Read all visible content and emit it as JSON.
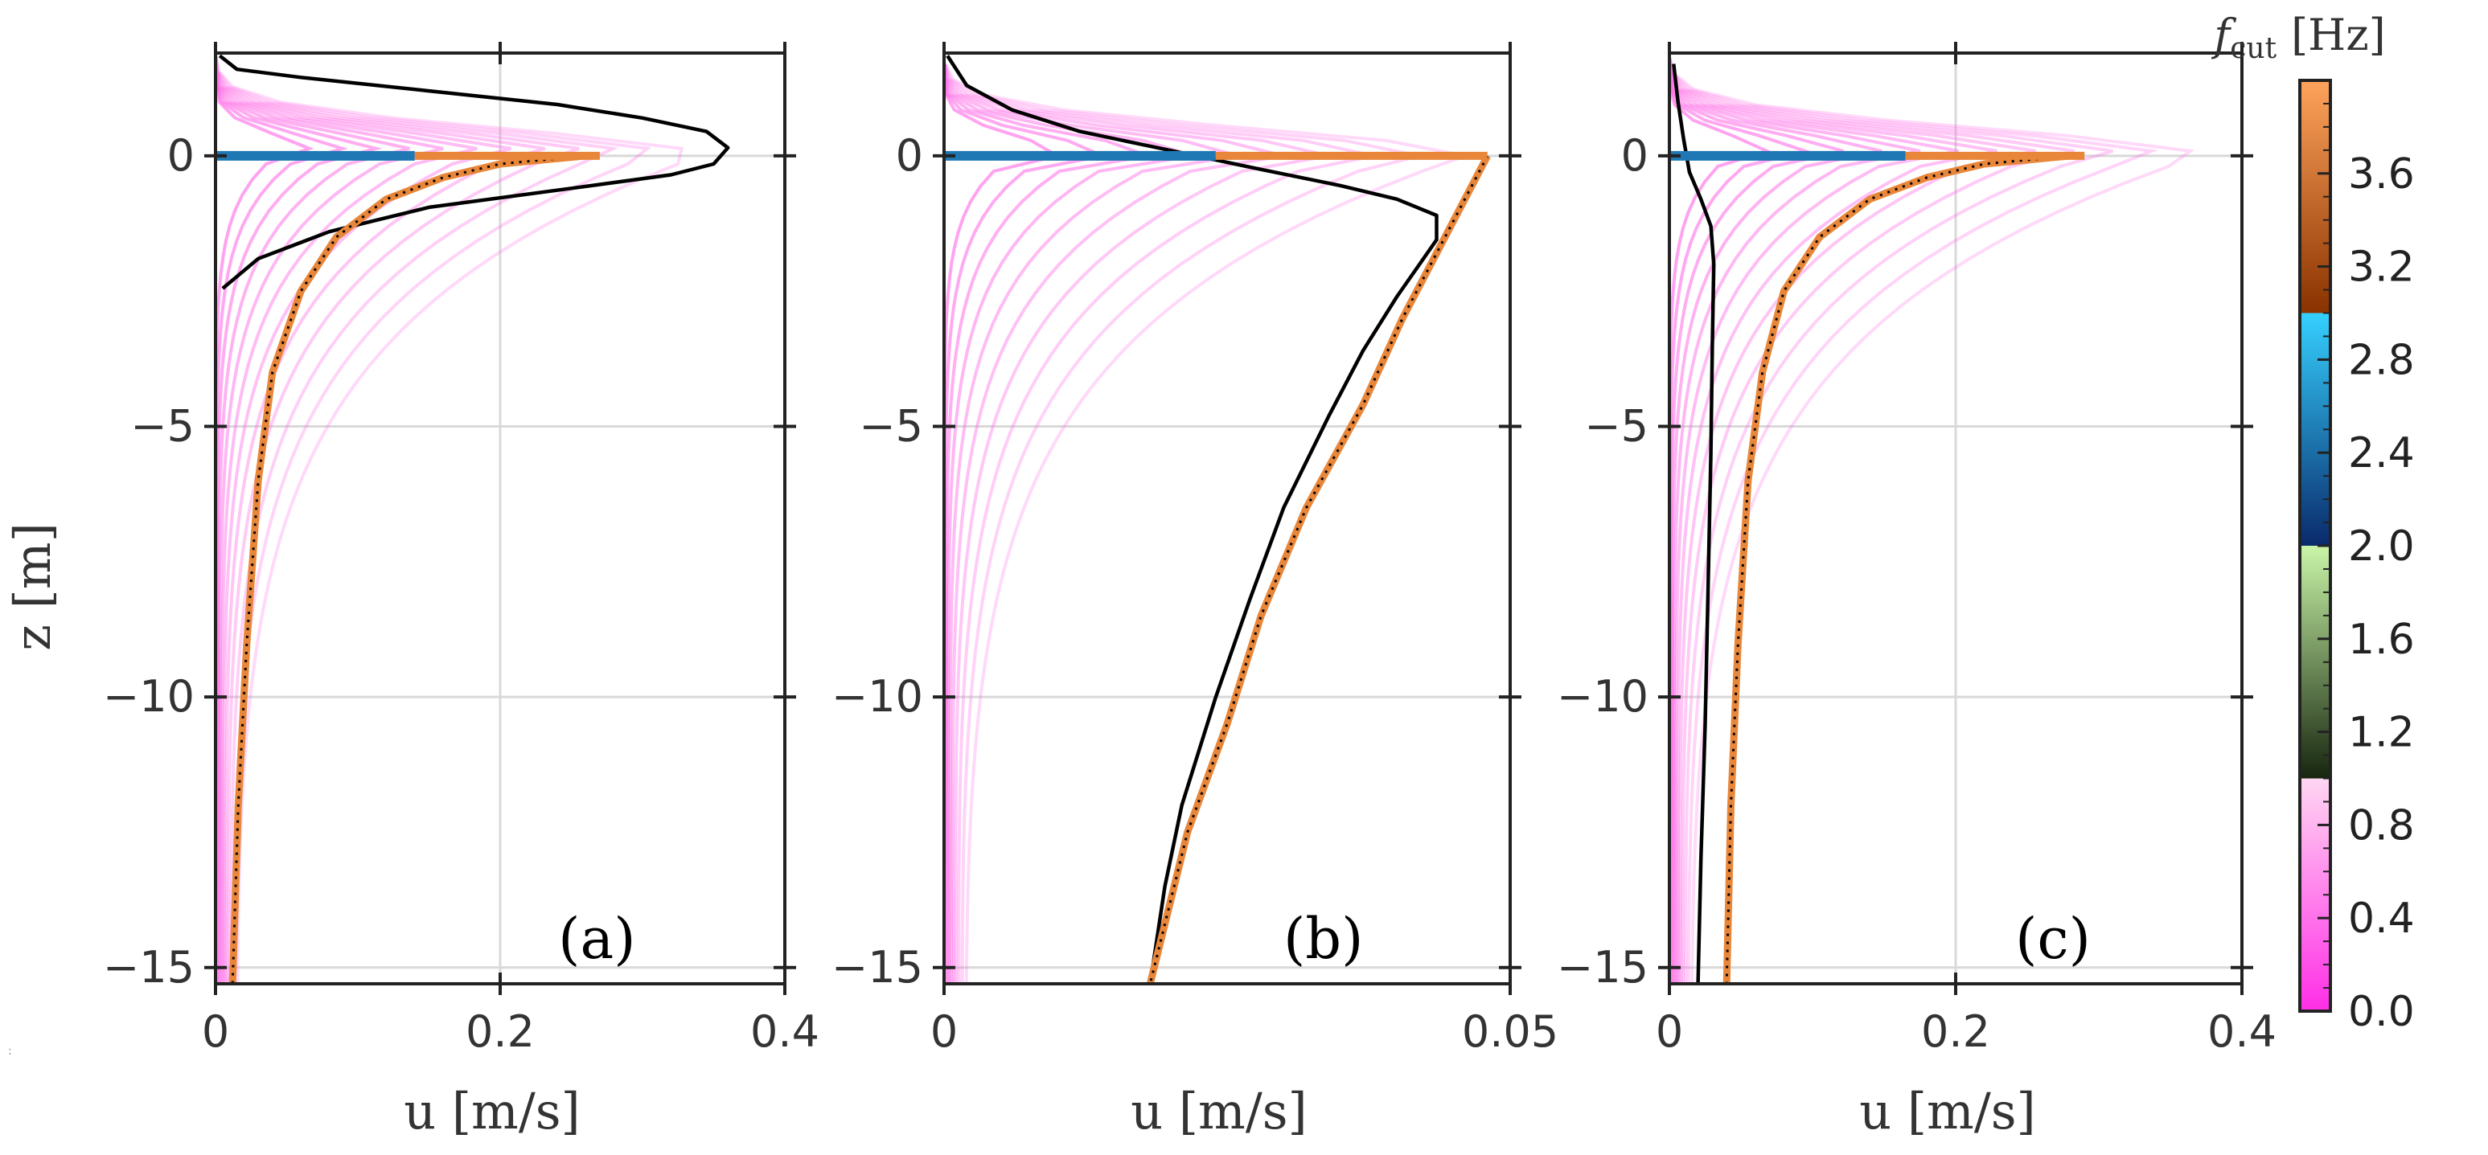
{
  "figure": {
    "colorbar": {
      "label_symbol": "f",
      "label_subscript": "cut",
      "label_unit": "[Hz]",
      "ticks": [
        "0.0",
        "0.4",
        "0.8",
        "1.2",
        "1.6",
        "2.0",
        "2.4",
        "2.8",
        "3.2",
        "3.6"
      ],
      "range": [
        0,
        4
      ],
      "segments": [
        {
          "from": 0,
          "to": 1,
          "colors": [
            "#ff2ee6",
            "#ffd6f2"
          ]
        },
        {
          "from": 1,
          "to": 2,
          "colors": [
            "#17260f",
            "#c9f5a8"
          ]
        },
        {
          "from": 2,
          "to": 3,
          "colors": [
            "#0a2a6b",
            "#35d0ff"
          ]
        },
        {
          "from": 3,
          "to": 4,
          "colors": [
            "#8a3200",
            "#ffa45c"
          ]
        }
      ]
    },
    "colors": {
      "black_curve": "#000000",
      "orange_curve": "#e8863a",
      "blue_bar": "#1f78b4",
      "pink_family": "#ff66e6",
      "grid": "#d9d9d9"
    }
  },
  "chart_data": [
    {
      "type": "line",
      "panel_label": "(a)",
      "xlabel": "u [m/s]",
      "ylabel": "z [m]",
      "xlim": [
        0,
        0.4
      ],
      "ylim": [
        -15.3,
        1.9
      ],
      "xticks": [
        0,
        0.2,
        0.4
      ],
      "xtick_labels": [
        "0",
        "0.2",
        "0.4"
      ],
      "yticks": [
        0,
        -5,
        -10,
        -15
      ],
      "ytick_labels": [
        "0",
        "−5",
        "−10",
        "−15"
      ],
      "grid": true,
      "series": [
        {
          "name": "black",
          "color": "#000000",
          "points": [
            [
              0.003,
              1.85
            ],
            [
              0.015,
              1.6
            ],
            [
              0.06,
              1.45
            ],
            [
              0.15,
              1.2
            ],
            [
              0.24,
              0.95
            ],
            [
              0.3,
              0.7
            ],
            [
              0.345,
              0.45
            ],
            [
              0.36,
              0.15
            ],
            [
              0.35,
              -0.15
            ],
            [
              0.32,
              -0.35
            ],
            [
              0.25,
              -0.6
            ],
            [
              0.15,
              -0.95
            ],
            [
              0.08,
              -1.4
            ],
            [
              0.03,
              -1.9
            ],
            [
              0.005,
              -2.45
            ]
          ]
        },
        {
          "name": "orange",
          "color": "#e8863a",
          "points": [
            [
              0.26,
              0
            ],
            [
              0.2,
              -0.15
            ],
            [
              0.16,
              -0.4
            ],
            [
              0.12,
              -0.8
            ],
            [
              0.085,
              -1.5
            ],
            [
              0.06,
              -2.5
            ],
            [
              0.04,
              -4.0
            ],
            [
              0.03,
              -6.0
            ],
            [
              0.022,
              -9.0
            ],
            [
              0.016,
              -12.0
            ],
            [
              0.012,
              -15.3
            ]
          ]
        },
        {
          "name": "blue",
          "color": "#1f78b4",
          "points": [
            [
              0,
              0
            ],
            [
              0.14,
              0
            ]
          ]
        },
        {
          "name": "orange-surface",
          "color": "#e8863a",
          "points": [
            [
              0.14,
              0
            ],
            [
              0.27,
              0
            ]
          ]
        }
      ],
      "pink_family": {
        "count": 12,
        "peak_u": [
          0.07,
          0.34
        ],
        "peak_z": 0.0,
        "surface_z": 1.85
      }
    },
    {
      "type": "line",
      "panel_label": "(b)",
      "xlabel": "u [m/s]",
      "ylabel": "",
      "xlim": [
        0,
        0.05
      ],
      "ylim": [
        -15.3,
        1.9
      ],
      "xticks": [
        0,
        0.05
      ],
      "xtick_labels": [
        "0",
        "0.05"
      ],
      "yticks": [
        0,
        -5,
        -10,
        -15
      ],
      "ytick_labels": [
        "0",
        "−5",
        "−10",
        "−15"
      ],
      "grid": true,
      "series": [
        {
          "name": "black",
          "color": "#000000",
          "points": [
            [
              0.0003,
              1.85
            ],
            [
              0.002,
              1.3
            ],
            [
              0.006,
              0.85
            ],
            [
              0.012,
              0.45
            ],
            [
              0.02,
              0.1
            ],
            [
              0.028,
              -0.25
            ],
            [
              0.035,
              -0.55
            ],
            [
              0.04,
              -0.8
            ],
            [
              0.0435,
              -1.1
            ],
            [
              0.0435,
              -1.55
            ],
            [
              0.042,
              -2.0
            ],
            [
              0.04,
              -2.6
            ],
            [
              0.037,
              -3.6
            ],
            [
              0.034,
              -4.8
            ],
            [
              0.03,
              -6.5
            ],
            [
              0.027,
              -8.2
            ],
            [
              0.024,
              -10.0
            ],
            [
              0.021,
              -12.0
            ],
            [
              0.0195,
              -13.5
            ],
            [
              0.0182,
              -15.3
            ]
          ]
        },
        {
          "name": "orange",
          "color": "#e8863a",
          "points": [
            [
              0.048,
              0
            ],
            [
              0.044,
              -1.6
            ],
            [
              0.0405,
              -3.0
            ],
            [
              0.037,
              -4.6
            ],
            [
              0.032,
              -6.5
            ],
            [
              0.028,
              -8.5
            ],
            [
              0.025,
              -10.5
            ],
            [
              0.0215,
              -12.5
            ],
            [
              0.0182,
              -15.3
            ]
          ]
        },
        {
          "name": "blue",
          "color": "#1f78b4",
          "points": [
            [
              0,
              0
            ],
            [
              0.024,
              0
            ]
          ]
        },
        {
          "name": "orange-surface",
          "color": "#e8863a",
          "points": [
            [
              0.024,
              0
            ],
            [
              0.048,
              0
            ]
          ]
        }
      ],
      "pink_family": {
        "count": 10,
        "peak_u": [
          0.01,
          0.046
        ],
        "peak_z": 0.0,
        "surface_z": 1.7
      }
    },
    {
      "type": "line",
      "panel_label": "(c)",
      "xlabel": "u [m/s]",
      "ylabel": "",
      "xlim": [
        0,
        0.4
      ],
      "ylim": [
        -15.3,
        1.9
      ],
      "xticks": [
        0,
        0.2,
        0.4
      ],
      "xtick_labels": [
        "0",
        "0.2",
        "0.4"
      ],
      "yticks": [
        0,
        -5,
        -10,
        -15
      ],
      "ytick_labels": [
        "0",
        "−5",
        "−10",
        "−15"
      ],
      "grid": true,
      "series": [
        {
          "name": "black",
          "color": "#000000",
          "points": [
            [
              0.003,
              1.7
            ],
            [
              0.006,
              1.0
            ],
            [
              0.01,
              0.3
            ],
            [
              0.014,
              -0.3
            ],
            [
              0.022,
              -0.8
            ],
            [
              0.029,
              -1.3
            ],
            [
              0.031,
              -2.0
            ],
            [
              0.03,
              -3.5
            ],
            [
              0.029,
              -5.5
            ],
            [
              0.027,
              -8.0
            ],
            [
              0.025,
              -10.5
            ],
            [
              0.022,
              -13.0
            ],
            [
              0.02,
              -15.3
            ]
          ]
        },
        {
          "name": "orange",
          "color": "#e8863a",
          "points": [
            [
              0.28,
              0
            ],
            [
              0.22,
              -0.15
            ],
            [
              0.18,
              -0.4
            ],
            [
              0.14,
              -0.8
            ],
            [
              0.105,
              -1.5
            ],
            [
              0.08,
              -2.5
            ],
            [
              0.065,
              -4.0
            ],
            [
              0.055,
              -6.0
            ],
            [
              0.048,
              -9.0
            ],
            [
              0.043,
              -12.0
            ],
            [
              0.04,
              -15.3
            ]
          ]
        },
        {
          "name": "blue",
          "color": "#1f78b4",
          "points": [
            [
              0,
              0
            ],
            [
              0.165,
              0
            ]
          ]
        },
        {
          "name": "orange-surface",
          "color": "#e8863a",
          "points": [
            [
              0.165,
              0
            ],
            [
              0.29,
              0
            ]
          ]
        }
      ],
      "pink_family": {
        "count": 12,
        "peak_u": [
          0.07,
          0.37
        ],
        "peak_z": 0.0,
        "surface_z": 1.8
      }
    }
  ]
}
